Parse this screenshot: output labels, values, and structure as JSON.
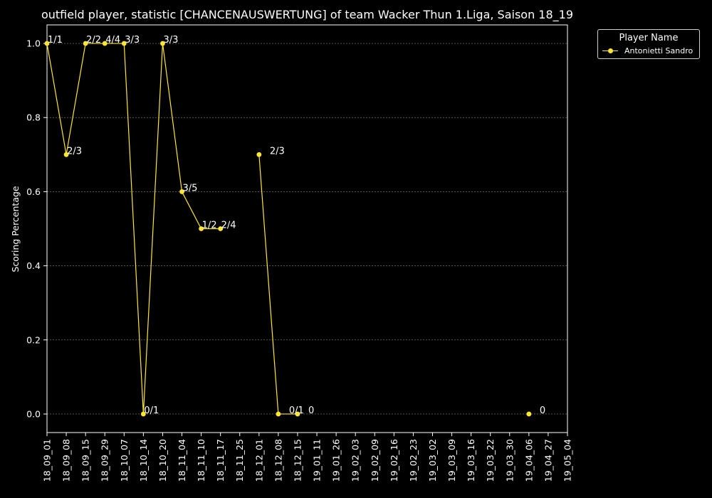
{
  "chart_data": {
    "type": "line",
    "title": "outfield player, statistic [CHANCENAUSWERTUNG] of team Wacker Thun 1.Liga, Saison 18_19",
    "xlabel": "",
    "ylabel": "Scoring Percentage",
    "ylim": [
      -0.05,
      1.05
    ],
    "yticks": [
      0.0,
      0.2,
      0.4,
      0.6,
      0.8,
      1.0
    ],
    "grid": true,
    "legend_title": "Player Name",
    "legend_position": "outside-top-right",
    "categories": [
      "18_09_01",
      "18_09_08",
      "18_09_15",
      "18_09_29",
      "18_10_07",
      "18_10_14",
      "18_10_20",
      "18_11_04",
      "18_11_10",
      "18_11_17",
      "18_11_25",
      "18_12_01",
      "18_12_08",
      "18_12_15",
      "19_01_11",
      "19_01_26",
      "19_02_03",
      "19_02_09",
      "19_02_16",
      "19_02_23",
      "19_03_02",
      "19_03_09",
      "19_03_16",
      "19_03_22",
      "19_03_30",
      "19_04_06",
      "19_04_27",
      "19_05_04"
    ],
    "series": [
      {
        "name": "Antonietti Sandro",
        "color": "#ffe633",
        "values": [
          1.0,
          0.7,
          1.0,
          1.0,
          1.0,
          0.0,
          1.0,
          0.6,
          0.5,
          0.5,
          null,
          0.7,
          0.0,
          0.0,
          null,
          null,
          null,
          null,
          null,
          null,
          null,
          null,
          null,
          null,
          null,
          0.0,
          null,
          null
        ],
        "labels": [
          "1/1",
          "2/3",
          "2/2",
          "4/4",
          "3/3",
          "0/1",
          "3/3",
          "3/5",
          "1/2",
          "2/4",
          null,
          "2/3",
          "0/1",
          "0",
          null,
          null,
          null,
          null,
          null,
          null,
          null,
          null,
          null,
          null,
          null,
          "0",
          null,
          null
        ]
      }
    ]
  }
}
